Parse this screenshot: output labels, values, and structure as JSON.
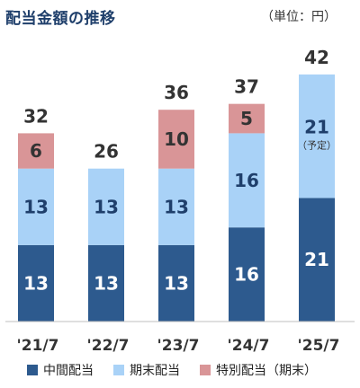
{
  "title": "配当金額の推移",
  "unit": "（単位：円）",
  "colors": {
    "interim": "#2d5a8e",
    "year_end": "#a9d2f7",
    "special": "#d99597"
  },
  "chart_data": {
    "type": "bar",
    "stacked": true,
    "categories": [
      "'21/7",
      "'22/7",
      "'23/7",
      "'24/7",
      "'25/7"
    ],
    "series": [
      {
        "name": "中間配当",
        "values": [
          13,
          13,
          13,
          16,
          21
        ]
      },
      {
        "name": "期末配当",
        "values": [
          13,
          13,
          13,
          16,
          21
        ]
      },
      {
        "name": "特別配当（期末）",
        "values": [
          6,
          0,
          10,
          5,
          0
        ]
      }
    ],
    "totals": [
      32,
      26,
      36,
      37,
      42
    ],
    "annotations": [
      {
        "category": "'25/7",
        "series": "期末配当",
        "text": "（予定）"
      }
    ],
    "ylim": [
      0,
      42
    ],
    "legend_position": "bottom"
  }
}
